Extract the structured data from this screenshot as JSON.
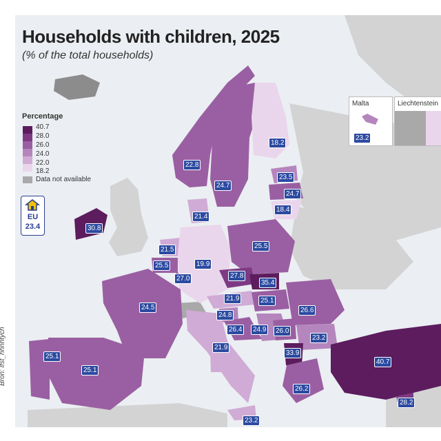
{
  "title": "Households with children, 2025",
  "subtitle": "(% of the total households)",
  "legend": {
    "title": "Percentage",
    "breaks": [
      "40.7",
      "28.0",
      "26.0",
      "24.0",
      "22.0",
      "18.2"
    ],
    "colors": [
      "#5c1c5e",
      "#7d3a83",
      "#9a5fa2",
      "#b585bd",
      "#d0abd5",
      "#ead6ec"
    ],
    "not_available_label": "Data not available",
    "not_available_color": "#a9a9a9"
  },
  "eu": {
    "label": "EU",
    "value": "23.4"
  },
  "insets": {
    "malta": {
      "label": "Malta",
      "value": "23.2"
    },
    "liechtenstein": {
      "label": "Liechtenstein"
    }
  },
  "source": "Bron: lfst_hhnhtych",
  "values": {
    "iceland": "",
    "norway": "22.8",
    "sweden": "24.7",
    "finland": "18.2",
    "estonia": "23.5",
    "latvia": "24.7",
    "lithuania": "18.4",
    "denmark": "21.4",
    "ireland": "30.8",
    "netherlands": "21.5",
    "belgium": "25.5",
    "luxembourg": "27.0",
    "germany": "19.9",
    "poland": "25.5",
    "czechia": "27.8",
    "slovakia": "35.4",
    "austria": "21.9",
    "hungary": "25.1",
    "romania": "26.6",
    "slovenia": "24.8",
    "croatia": "26.4",
    "serbia": "24.9",
    "bulgaria": "23.2",
    "bosnia": "26.0",
    "albania": "33.9",
    "france": "24.5",
    "spain": "25.1",
    "portugal": "25.1",
    "italy": "21.9",
    "greece": "26.2",
    "turkey": "40.7",
    "cyprus": "28.2",
    "malta_main": "23.2"
  }
}
